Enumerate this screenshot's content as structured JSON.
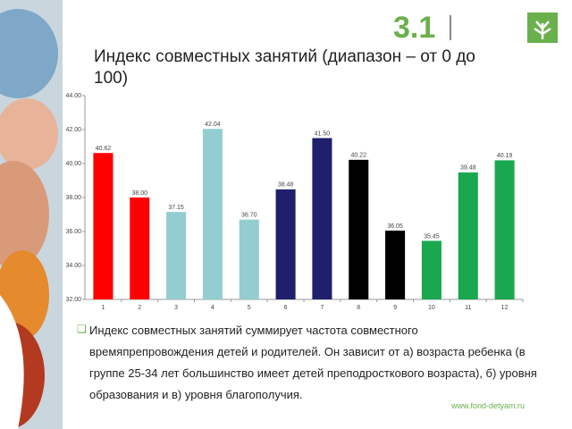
{
  "slide_number": "3.1",
  "title": "Индекс совместных занятий (диапазон – от 0 до 100)",
  "chart_data": {
    "type": "bar",
    "categories": [
      "1",
      "2",
      "3",
      "4",
      "5",
      "6",
      "7",
      "8",
      "9",
      "10",
      "11",
      "12"
    ],
    "values": [
      40.62,
      38.0,
      37.15,
      42.04,
      36.7,
      38.48,
      41.5,
      40.22,
      36.05,
      35.45,
      39.48,
      40.19
    ],
    "value_labels": [
      "40.62",
      "38.00",
      "37.15",
      "42.04",
      "36.70",
      "38.48",
      "41.50",
      "40.22",
      "36.05",
      "35.45",
      "39.48",
      "40.19"
    ],
    "colors": [
      "#ff0000",
      "#ff0000",
      "#93cdd1",
      "#93cdd1",
      "#93cdd1",
      "#1f1f6e",
      "#1f1f6e",
      "#000000",
      "#000000",
      "#19a84f",
      "#19a84f",
      "#19a84f"
    ],
    "ylim": [
      32,
      44
    ],
    "yticks": [
      {
        "value": 32,
        "label": "32.00"
      },
      {
        "value": 34,
        "label": "34.00"
      },
      {
        "value": 36,
        "label": "36.00"
      },
      {
        "value": 38,
        "label": "38.00"
      },
      {
        "value": 40,
        "label": "40.00"
      },
      {
        "value": 42,
        "label": "42.00"
      },
      {
        "value": 44,
        "label": "44.00"
      }
    ],
    "grid": false
  },
  "bullet": "Индекс совместных занятий суммирует частота совместного времяпрепровождения детей и родителей.  Он зависит от а) возраста ребенка (в группе 25-34 лет большинство имеет детей преподросткового возраста), б) уровня образования и в) уровня благополучия.",
  "footer": "www.fond-detyam.ru"
}
